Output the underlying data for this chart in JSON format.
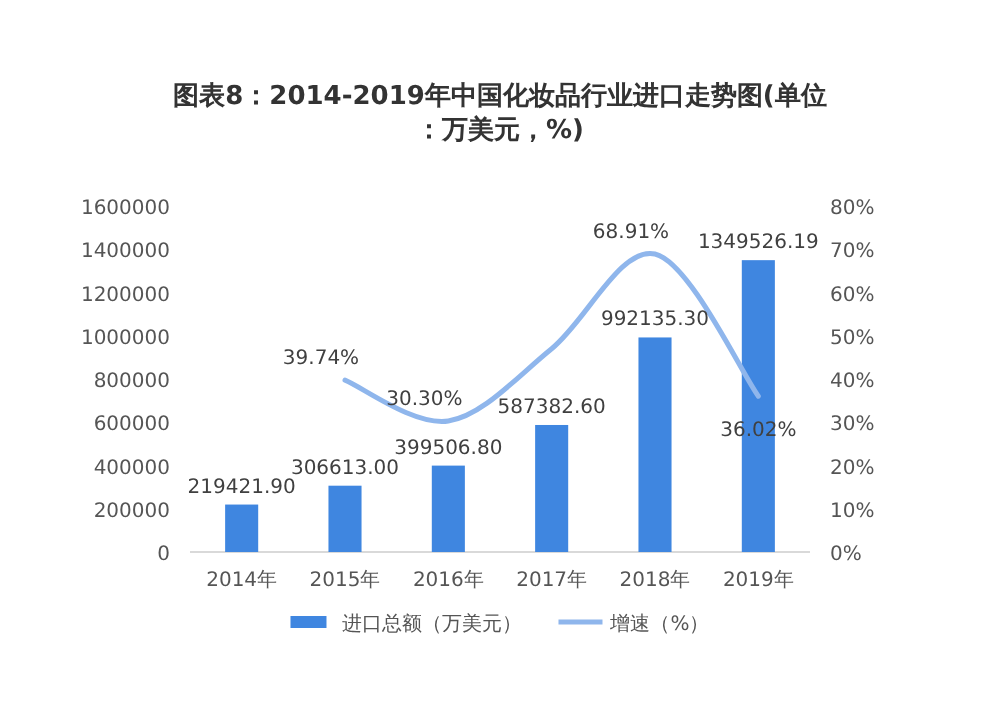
{
  "chart_data": {
    "type": "bar",
    "title": "图表8：2014-2019年中国化妆品行业进口走势图(单位：万美元，%)",
    "categories": [
      "2014年",
      "2015年",
      "2016年",
      "2017年",
      "2018年",
      "2019年"
    ],
    "series": [
      {
        "name": "进口总额（万美元）",
        "color": "#3f86e0",
        "values": [
          219421.9,
          306613.0,
          399506.8,
          587382.6,
          992135.3,
          1349526.19
        ],
        "value_labels": [
          "219421.90",
          "306613.00",
          "399506.80",
          "587382.60",
          "992135.30",
          "1349526.19"
        ]
      },
      {
        "name": "增速（%）",
        "type": "line",
        "axis": "y2",
        "color": "#8fb6ec",
        "values": [
          null,
          39.74,
          30.3,
          47,
          68.91,
          36.02
        ],
        "value_labels": [
          null,
          "39.74%",
          "30.30%",
          null,
          "68.91%",
          "36.02%"
        ]
      }
    ],
    "ylim": [
      0,
      1600000
    ],
    "yticks": [
      0,
      200000,
      400000,
      600000,
      800000,
      1000000,
      1200000,
      1400000,
      1600000
    ],
    "y2lim": [
      0,
      80
    ],
    "y2ticks": [
      {
        "value": 0,
        "label": "0%"
      },
      {
        "value": 10,
        "label": "10%"
      },
      {
        "value": 20,
        "label": "20%"
      },
      {
        "value": 30,
        "label": "30%"
      },
      {
        "value": 40,
        "label": "40%"
      },
      {
        "value": 50,
        "label": "50%"
      },
      {
        "value": 60,
        "label": "60%"
      },
      {
        "value": 70,
        "label": "70%"
      },
      {
        "value": 80,
        "label": "80%"
      }
    ],
    "legend": "bottom"
  }
}
